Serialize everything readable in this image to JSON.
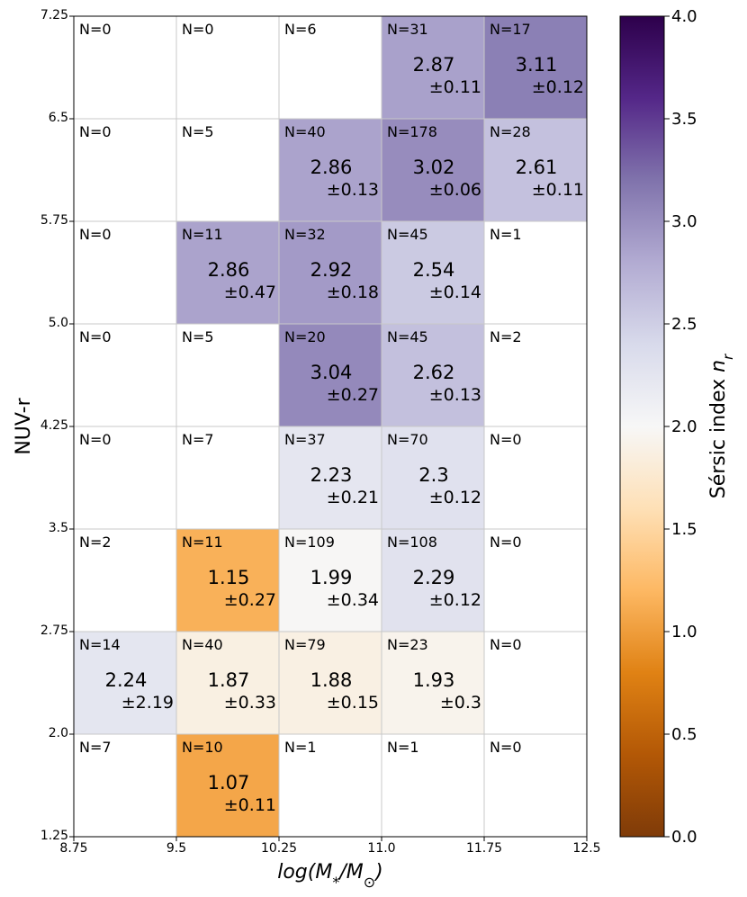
{
  "chart_data": {
    "type": "heatmap",
    "title": "",
    "xlabel": "log(M*/M⊙)",
    "xlabel_parts": {
      "pre": "log(M",
      "sub1": "*",
      "mid": "/M",
      "sub2": "⊙",
      "post": ")"
    },
    "ylabel": "NUV-r",
    "x_edges": [
      "8.75",
      "9.5",
      "10.25",
      "11.0",
      "11.75",
      "12.5"
    ],
    "y_edges": [
      "1.25",
      "2.0",
      "2.75",
      "3.5",
      "4.25",
      "5.0",
      "5.75",
      "6.5",
      "7.25"
    ],
    "xlim": [
      8.75,
      12.5
    ],
    "ylim": [
      1.25,
      7.25
    ],
    "grid": true,
    "colorbar": {
      "label": "Sérsic index n_r",
      "label_parts": {
        "main": "Sérsic index ",
        "var": "n",
        "sub": "r"
      },
      "cmap": "PuOr",
      "range": [
        0.0,
        4.0
      ],
      "ticks": [
        "0.0",
        "0.5",
        "1.0",
        "1.5",
        "2.0",
        "2.5",
        "3.0",
        "3.5",
        "4.0"
      ],
      "colors": [
        "#7f3b08",
        "#b35806",
        "#e08214",
        "#fdb863",
        "#fee0b6",
        "#f7f7f7",
        "#d8daeb",
        "#b2abd2",
        "#8073ac",
        "#542788",
        "#2d004b"
      ]
    },
    "rows": [
      {
        "y_range": [
          6.5,
          7.25
        ],
        "cells": [
          {
            "n": "N=0"
          },
          {
            "n": "N=0"
          },
          {
            "n": "N=6"
          },
          {
            "n": "N=31",
            "mean": "2.87",
            "err": "±0.11",
            "value": 2.87
          },
          {
            "n": "N=17",
            "mean": "3.11",
            "err": "±0.12",
            "value": 3.11
          }
        ]
      },
      {
        "y_range": [
          5.75,
          6.5
        ],
        "cells": [
          {
            "n": "N=0"
          },
          {
            "n": "N=5"
          },
          {
            "n": "N=40",
            "mean": "2.86",
            "err": "±0.13",
            "value": 2.86
          },
          {
            "n": "N=178",
            "mean": "3.02",
            "err": "±0.06",
            "value": 3.02
          },
          {
            "n": "N=28",
            "mean": "2.61",
            "err": "±0.11",
            "value": 2.61
          }
        ]
      },
      {
        "y_range": [
          5.0,
          5.75
        ],
        "cells": [
          {
            "n": "N=0"
          },
          {
            "n": "N=11",
            "mean": "2.86",
            "err": "±0.47",
            "value": 2.86
          },
          {
            "n": "N=32",
            "mean": "2.92",
            "err": "±0.18",
            "value": 2.92
          },
          {
            "n": "N=45",
            "mean": "2.54",
            "err": "±0.14",
            "value": 2.54
          },
          {
            "n": "N=1"
          }
        ]
      },
      {
        "y_range": [
          4.25,
          5.0
        ],
        "cells": [
          {
            "n": "N=0"
          },
          {
            "n": "N=5"
          },
          {
            "n": "N=20",
            "mean": "3.04",
            "err": "±0.27",
            "value": 3.04
          },
          {
            "n": "N=45",
            "mean": "2.62",
            "err": "±0.13",
            "value": 2.62
          },
          {
            "n": "N=2"
          }
        ]
      },
      {
        "y_range": [
          3.5,
          4.25
        ],
        "cells": [
          {
            "n": "N=0"
          },
          {
            "n": "N=7"
          },
          {
            "n": "N=37",
            "mean": "2.23",
            "err": "±0.21",
            "value": 2.23
          },
          {
            "n": "N=70",
            "mean": "2.3",
            "err": "±0.12",
            "value": 2.3
          },
          {
            "n": "N=0"
          }
        ]
      },
      {
        "y_range": [
          2.75,
          3.5
        ],
        "cells": [
          {
            "n": "N=2"
          },
          {
            "n": "N=11",
            "mean": "1.15",
            "err": "±0.27",
            "value": 1.15
          },
          {
            "n": "N=109",
            "mean": "1.99",
            "err": "±0.34",
            "value": 1.99
          },
          {
            "n": "N=108",
            "mean": "2.29",
            "err": "±0.12",
            "value": 2.29
          },
          {
            "n": "N=0"
          }
        ]
      },
      {
        "y_range": [
          2.0,
          2.75
        ],
        "cells": [
          {
            "n": "N=14",
            "mean": "2.24",
            "err": "±2.19",
            "value": 2.24
          },
          {
            "n": "N=40",
            "mean": "1.87",
            "err": "±0.33",
            "value": 1.87
          },
          {
            "n": "N=79",
            "mean": "1.88",
            "err": "±0.15",
            "value": 1.88
          },
          {
            "n": "N=23",
            "mean": "1.93",
            "err": "±0.3",
            "value": 1.93
          },
          {
            "n": "N=0"
          }
        ]
      },
      {
        "y_range": [
          1.25,
          2.0
        ],
        "cells": [
          {
            "n": "N=7"
          },
          {
            "n": "N=10",
            "mean": "1.07",
            "err": "±0.11",
            "value": 1.07
          },
          {
            "n": "N=1"
          },
          {
            "n": "N=1"
          },
          {
            "n": "N=0"
          }
        ]
      }
    ]
  }
}
